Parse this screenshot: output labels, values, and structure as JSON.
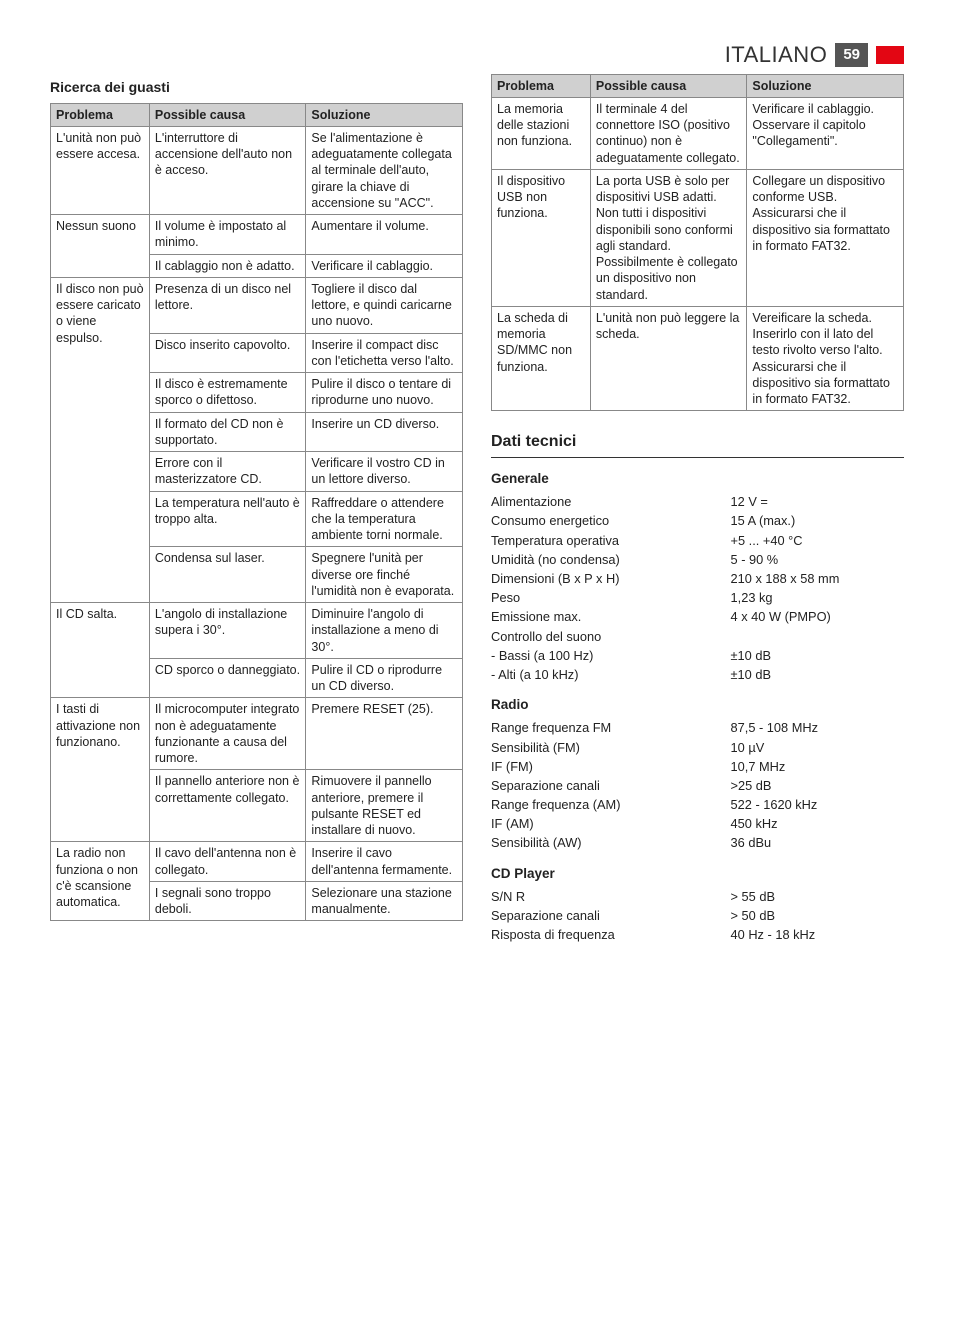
{
  "header": {
    "language": "ITALIANO",
    "page_number": "59"
  },
  "left_section_title": "Ricerca dei guasti",
  "table_headers": {
    "problem": "Problema",
    "cause": "Possible causa",
    "solution": "Soluzione"
  },
  "left_table": [
    {
      "problem": "L'unità non può essere accesa.",
      "rows": [
        {
          "cause": "L'interruttore di accensione dell'auto non è acceso.",
          "solution": "Se l'alimentazione è adeguatamente collegata al terminale dell'auto, girare la chiave di accensione su \"ACC\"."
        }
      ]
    },
    {
      "problem": "Nessun suono",
      "rows": [
        {
          "cause": "Il volume è impostato al minimo.",
          "solution": "Aumentare il volume."
        },
        {
          "cause": "Il cablaggio non è adatto.",
          "solution": "Verificare il cablaggio."
        }
      ]
    },
    {
      "problem": "Il disco non può essere caricato o viene espulso.",
      "rows": [
        {
          "cause": "Presenza di un disco nel lettore.",
          "solution": "Togliere il disco dal lettore, e quindi caricarne uno nuovo."
        },
        {
          "cause": "Disco inserito capovolto.",
          "solution": "Inserire il compact disc con l'etichetta verso l'alto."
        },
        {
          "cause": "Il disco è estremamente sporco o difettoso.",
          "solution": "Pulire il disco o tentare di riprodurne uno nuovo."
        },
        {
          "cause": "Il formato del CD non è supportato.",
          "solution": "Inserire un CD diverso."
        },
        {
          "cause": "Errore con il masterizzatore CD.",
          "solution": "Verificare il vostro CD in un lettore diverso."
        },
        {
          "cause": "La temperatura nell'auto è troppo alta.",
          "solution": "Raffreddare o attendere che la temperatura ambiente torni normale."
        },
        {
          "cause": "Condensa sul laser.",
          "solution": "Spegnere l'unità per diverse ore finché l'umidità non è evaporata."
        }
      ]
    },
    {
      "problem": "Il CD salta.",
      "rows": [
        {
          "cause": "L'angolo di installazione supera i 30°.",
          "solution": "Diminuire l'angolo di installazione a meno di 30°."
        },
        {
          "cause": "CD sporco o danneggiato.",
          "solution": "Pulire il CD o riprodurre un CD diverso."
        }
      ]
    },
    {
      "problem": "I tasti di attivazione non funzionano.",
      "rows": [
        {
          "cause": "Il microcomputer integrato non è adeguatamente funzionante a causa del rumore.",
          "solution": "Premere RESET (25)."
        },
        {
          "cause": "Il pannello anteriore non è correttamente collegato.",
          "solution": "Rimuovere il pannello anteriore, premere il pulsante RESET ed installare di nuovo."
        }
      ]
    },
    {
      "problem": "La radio non funziona o non c'è scansione automatica.",
      "rows": [
        {
          "cause": "Il cavo dell'antenna non è collegato.",
          "solution": "Inserire il cavo dell'antenna fermamente."
        },
        {
          "cause": "I segnali sono troppo deboli.",
          "solution": "Selezionare una stazione manualmente."
        }
      ]
    }
  ],
  "right_table": [
    {
      "problem": "La memoria delle stazioni non funziona.",
      "rows": [
        {
          "cause": "Il terminale 4 del connettore ISO (positivo continuo) non è adeguatamente collegato.",
          "solution": "Verificare il cablaggio. Osservare il capitolo \"Collegamenti\"."
        }
      ]
    },
    {
      "problem": "Il dispositivo USB non funziona.",
      "rows": [
        {
          "cause": "La porta USB è solo per dispositivi USB adatti. Non tutti i dispositivi disponibili sono conformi agli standard. Possibilmente è collegato un dispositivo non standard.",
          "solution": "Collegare un dispositivo conforme USB. Assicurarsi che il dispositivo sia formattato in formato FAT32."
        }
      ]
    },
    {
      "problem": "La scheda di memoria SD/MMC non funziona.",
      "rows": [
        {
          "cause": "L'unità non può leggere la scheda.",
          "solution": "Vereificare la scheda. Inserirlo con il lato del testo rivolto verso l'alto. Assicurarsi che il dispositivo sia formattato in formato FAT32."
        }
      ]
    }
  ],
  "tech_title": "Dati tecnici",
  "sections": [
    {
      "heading": "Generale",
      "specs": [
        {
          "label": "Alimentazione",
          "value": "12 V ="
        },
        {
          "label": "Consumo energetico",
          "value": "15 A (max.)"
        },
        {
          "label": "Temperatura operativa",
          "value": "+5 ... +40 °C"
        },
        {
          "label": "Umidità (no condensa)",
          "value": "5 - 90 %"
        },
        {
          "label": "Dimensioni (B x P x H)",
          "value": "210 x 188 x 58 mm"
        },
        {
          "label": "Peso",
          "value": "1,23 kg"
        },
        {
          "label": "Emissione max.",
          "value": "4 x 40 W (PMPO)"
        },
        {
          "label": "Controllo del suono",
          "value": ""
        },
        {
          "label": "- Bassi (a 100 Hz)",
          "value": "±10 dB"
        },
        {
          "label": "- Alti (a 10 kHz)",
          "value": "±10 dB"
        }
      ]
    },
    {
      "heading": "Radio",
      "specs": [
        {
          "label": "Range frequenza FM",
          "value": "87,5 - 108 MHz"
        },
        {
          "label": "Sensibilità (FM)",
          "value": "10 µV"
        },
        {
          "label": "IF (FM)",
          "value": "10,7 MHz"
        },
        {
          "label": "Separazione canali",
          "value": ">25 dB"
        },
        {
          "label": "",
          "value": ""
        },
        {
          "label": "Range frequenza (AM)",
          "value": "522 - 1620 kHz"
        },
        {
          "label": "IF (AM)",
          "value": "450 kHz"
        },
        {
          "label": "Sensibilità (AW)",
          "value": "36 dBu"
        }
      ]
    },
    {
      "heading": "CD Player",
      "specs": [
        {
          "label": "S/N R",
          "value": "> 55 dB"
        },
        {
          "label": "Separazione canali",
          "value": "> 50 dB"
        },
        {
          "label": "Risposta di frequenza",
          "value": "40 Hz - 18 kHz"
        }
      ]
    }
  ]
}
